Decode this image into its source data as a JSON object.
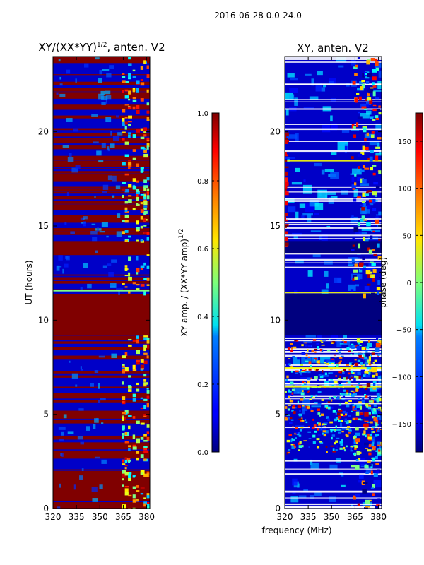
{
  "suptitle": "2016-06-28 0.0-24.0",
  "colors": {
    "jet_dark_red": "#800000",
    "jet_dark_blue": "#00007f",
    "axis": "#000000",
    "background": "#ffffff"
  },
  "chart_data": [
    {
      "type": "heatmap",
      "title": "XY/(XX*YY)^{1/2}, anten. V2",
      "title_main": "XY/(XX*YY)",
      "title_sup": "1/2",
      "title_tail": ", anten. V2",
      "xlabel": "",
      "ylabel": "UT (hours)",
      "xlim": [
        320,
        382
      ],
      "ylim": [
        0,
        24
      ],
      "xticks": [
        320,
        335,
        350,
        365,
        380
      ],
      "yticks": [
        0,
        5,
        10,
        15,
        20
      ],
      "colorbar": {
        "label": "XY amp. / (XX*YY amp)^{1/2}",
        "label_main": "XY amp. / (XX*YY amp)",
        "label_sup": "1/2",
        "vmin": 0.0,
        "vmax": 1.0,
        "ticks": [
          "0.0",
          "0.2",
          "0.4",
          "0.6",
          "0.8",
          "1.0"
        ]
      },
      "saturated_bands_hours": [
        [
          9.2,
          11.4
        ],
        [
          13.5,
          14.2
        ],
        [
          0.4,
          2.0
        ]
      ],
      "rfi_band_mhz": [
        362,
        382
      ]
    },
    {
      "type": "heatmap",
      "title": "XY, anten. V2",
      "xlabel": "frequency (MHz)",
      "ylabel": "",
      "xlim": [
        320,
        382
      ],
      "ylim": [
        0,
        24
      ],
      "xticks": [
        320,
        335,
        350,
        365,
        380
      ],
      "yticks": [
        0,
        5,
        10,
        15,
        20
      ],
      "colorbar": {
        "label": "phase (deg)",
        "vmin": -180,
        "vmax": 180,
        "ticks": [
          "−150",
          "−100",
          "−50",
          "0",
          "50",
          "100",
          "150"
        ]
      },
      "blank_band_hours": [
        9.2,
        11.4
      ],
      "rfi_band_mhz": [
        362,
        382
      ]
    }
  ]
}
